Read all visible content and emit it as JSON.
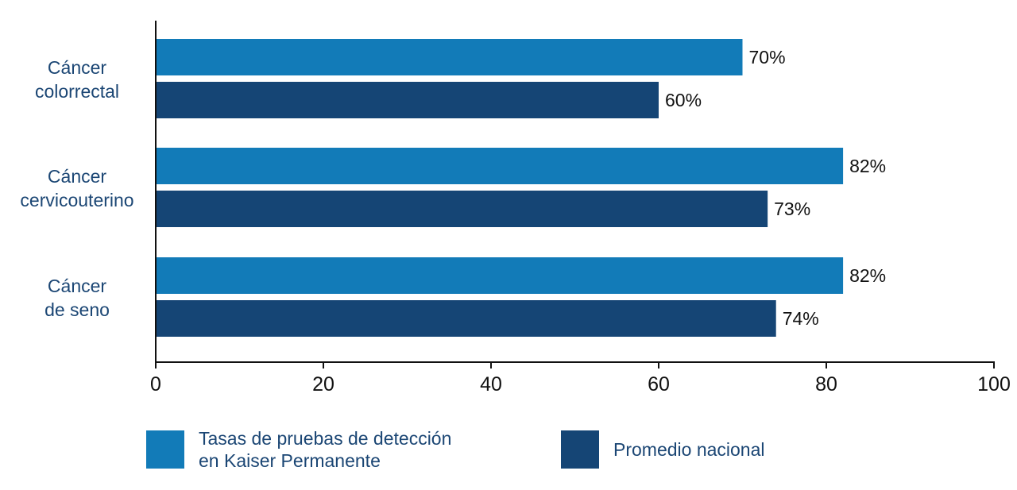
{
  "chart_data": {
    "type": "bar",
    "orientation": "horizontal",
    "categories": [
      "Cáncer\ncolorrectal",
      "Cáncer\ncervicouterino",
      "Cáncer\nde seno"
    ],
    "series": [
      {
        "name": "Tasas de pruebas de detección\nen Kaiser Permanente",
        "color": "#127bb8",
        "values": [
          70,
          82,
          82
        ],
        "labels": [
          "70%",
          "82%",
          "82%"
        ]
      },
      {
        "name": "Promedio nacional",
        "color": "#154575",
        "values": [
          60,
          73,
          74
        ],
        "labels": [
          "60%",
          "73%",
          "74%"
        ]
      }
    ],
    "xlim": [
      0,
      100
    ],
    "xticks": [
      0,
      20,
      40,
      60,
      80,
      100
    ],
    "grid": false,
    "legend_position": "bottom"
  }
}
